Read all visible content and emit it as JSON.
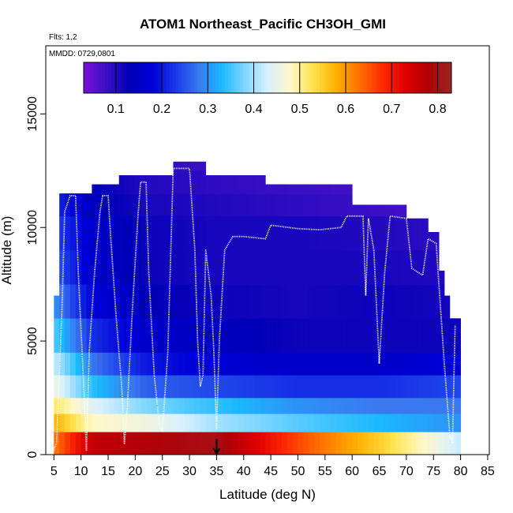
{
  "chart_data": {
    "type": "heatmap",
    "title": "ATOM1 Northeast_Pacific CH3OH_GMI",
    "flights_note": "Flts: 1,2",
    "date_note": "MMDD: 0729,0801",
    "xlabel": "Latitude (deg N)",
    "ylabel": "Altitude (m)",
    "xlim": [
      5,
      85
    ],
    "ylim": [
      0,
      18000
    ],
    "x_ticks": [
      5,
      10,
      15,
      20,
      25,
      30,
      35,
      40,
      45,
      50,
      55,
      60,
      65,
      70,
      75,
      80,
      85
    ],
    "y_ticks": [
      0,
      5000,
      10000,
      15000
    ],
    "colorbar": {
      "min": 0.03,
      "max": 0.83,
      "ticks": [
        0.1,
        0.2,
        0.3,
        0.4,
        0.5,
        0.6,
        0.7,
        0.8
      ],
      "colors": [
        "#7b11d9",
        "#3a0fc4",
        "#0000b8",
        "#0000d8",
        "#1a3ae8",
        "#3a78f0",
        "#1ab8ff",
        "#7fd6ff",
        "#d8f0ff",
        "#fff7c8",
        "#ffe24a",
        "#ffb000",
        "#ff7000",
        "#ff2a00",
        "#e00000",
        "#b00008",
        "#9b2525"
      ]
    },
    "marker_latitude": 35,
    "altitude_bands": [
      {
        "alt": [
          0,
          1000
        ],
        "values": [
          0.62,
          0.76,
          0.78,
          0.8,
          0.66,
          0.55,
          0.42
        ]
      },
      {
        "alt": [
          1000,
          1800
        ],
        "values": [
          0.58,
          0.48,
          0.46,
          0.4,
          0.36,
          0.33,
          0.3
        ]
      },
      {
        "alt": [
          1800,
          2500
        ],
        "values": [
          0.52,
          0.44,
          0.38,
          0.34,
          0.3,
          0.28,
          0.28
        ]
      },
      {
        "alt": [
          2500,
          3500
        ],
        "values": [
          0.46,
          0.34,
          0.26,
          0.24,
          0.22,
          0.22,
          0.24
        ]
      },
      {
        "alt": [
          3500,
          4500
        ],
        "values": [
          0.42,
          0.28,
          0.2,
          0.17,
          0.16,
          0.16,
          0.18
        ]
      },
      {
        "alt": [
          4500,
          6000
        ],
        "values": [
          0.36,
          0.22,
          0.16,
          0.14,
          0.12,
          0.12,
          0.12
        ]
      },
      {
        "alt": [
          6000,
          7500
        ],
        "values": [
          0.3,
          0.18,
          0.13,
          0.12,
          0.11,
          0.12,
          0.11
        ]
      },
      {
        "alt": [
          7500,
          9000
        ],
        "values": [
          0.26,
          0.16,
          0.12,
          0.11,
          0.11,
          0.11,
          0.1
        ]
      },
      {
        "alt": [
          9000,
          10500
        ],
        "values": [
          0.24,
          0.16,
          0.12,
          0.11,
          0.11,
          0.1,
          0.09
        ]
      },
      {
        "alt": [
          10500,
          11500
        ],
        "values": [
          0.22,
          0.14,
          0.11,
          0.1,
          0.09,
          0.08,
          0.06
        ]
      },
      {
        "alt": [
          11500,
          12500
        ],
        "values": [
          0.2,
          0.13,
          0.1,
          0.09,
          0.08,
          0.07,
          0.05
        ]
      },
      {
        "alt": [
          12500,
          13000
        ],
        "values": [
          0.12,
          0.1,
          0.09,
          0.08,
          0.07,
          0.06,
          0.05
        ]
      }
    ],
    "band_latitudes": [
      5,
      12,
      22,
      35,
      50,
      65,
      80
    ],
    "coverage": [
      {
        "lat": [
          5,
          6
        ],
        "top": 7000
      },
      {
        "lat": [
          6,
          7
        ],
        "top": 11500
      },
      {
        "lat": [
          7,
          12
        ],
        "top": 11500
      },
      {
        "lat": [
          12,
          17
        ],
        "top": 11900
      },
      {
        "lat": [
          17,
          27
        ],
        "top": 12300
      },
      {
        "lat": [
          27,
          33
        ],
        "top": 12900
      },
      {
        "lat": [
          33,
          44
        ],
        "top": 12300
      },
      {
        "lat": [
          44,
          60
        ],
        "top": 11900
      },
      {
        "lat": [
          60,
          70
        ],
        "top": 11000
      },
      {
        "lat": [
          70,
          74
        ],
        "top": 10400
      },
      {
        "lat": [
          74,
          76
        ],
        "top": 9800
      },
      {
        "lat": [
          76,
          77
        ],
        "top": 8100
      },
      {
        "lat": [
          77,
          78
        ],
        "top": 7000
      },
      {
        "lat": [
          78,
          79
        ],
        "top": 6000
      },
      {
        "lat": [
          79,
          80
        ],
        "top": 6000
      }
    ],
    "flight_track": [
      [
        5,
        200
      ],
      [
        5.5,
        500
      ],
      [
        6.5,
        6500
      ],
      [
        7,
        10700
      ],
      [
        8,
        11400
      ],
      [
        9,
        11400
      ],
      [
        9.5,
        8000
      ],
      [
        10.5,
        3000
      ],
      [
        11,
        200
      ],
      [
        11.5,
        4500
      ],
      [
        12.5,
        8000
      ],
      [
        13.5,
        10700
      ],
      [
        14,
        11400
      ],
      [
        15,
        11400
      ],
      [
        15.5,
        9500
      ],
      [
        16.5,
        6000
      ],
      [
        17.5,
        3000
      ],
      [
        18,
        500
      ],
      [
        18.5,
        2000
      ],
      [
        19.5,
        6500
      ],
      [
        20.5,
        10500
      ],
      [
        21,
        12000
      ],
      [
        22,
        12000
      ],
      [
        22.5,
        8000
      ],
      [
        23.5,
        3500
      ],
      [
        24.5,
        1200
      ],
      [
        25,
        1000
      ],
      [
        26,
        4500
      ],
      [
        27,
        12600
      ],
      [
        30,
        12600
      ],
      [
        31,
        9000
      ],
      [
        31.5,
        5000
      ],
      [
        32,
        3000
      ],
      [
        32.5,
        3500
      ],
      [
        33,
        9000
      ],
      [
        34,
        7000
      ],
      [
        34.5,
        4500
      ],
      [
        35,
        1100
      ],
      [
        35.5,
        5000
      ],
      [
        36.5,
        9000
      ],
      [
        38,
        9600
      ],
      [
        40,
        9600
      ],
      [
        44,
        9500
      ],
      [
        45,
        10100
      ],
      [
        50,
        9950
      ],
      [
        54,
        9900
      ],
      [
        58,
        10000
      ],
      [
        59,
        10500
      ],
      [
        62,
        10500
      ],
      [
        62.5,
        7000
      ],
      [
        63,
        10400
      ],
      [
        64,
        9000
      ],
      [
        65,
        4000
      ],
      [
        66,
        8000
      ],
      [
        67,
        10500
      ],
      [
        70,
        10400
      ],
      [
        71,
        8200
      ],
      [
        73,
        7900
      ],
      [
        74,
        9500
      ],
      [
        75.5,
        9300
      ],
      [
        76,
        7500
      ],
      [
        77,
        4000
      ],
      [
        78,
        900
      ],
      [
        78.5,
        500
      ],
      [
        79,
        5700
      ]
    ],
    "grid": false,
    "legend": "top-center"
  }
}
